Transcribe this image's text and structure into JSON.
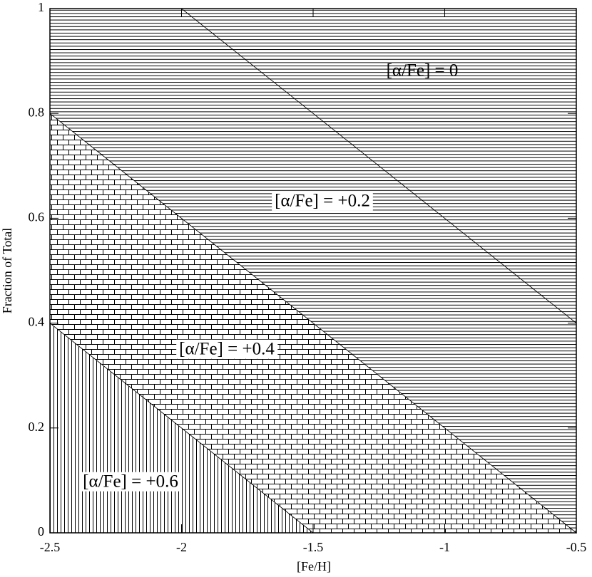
{
  "chart_data": {
    "type": "area",
    "stacked": true,
    "x_label": "[Fe/H]",
    "y_label": "Fraction of Total",
    "x": [
      -2.5,
      -2.0,
      -1.5,
      -1.0,
      -0.5
    ],
    "series": [
      {
        "name": "[α/Fe] = +0.6",
        "color": "#000000",
        "pattern": "vertical",
        "values": [
          0.4,
          0.2,
          0,
          0,
          0
        ]
      },
      {
        "name": "[α/Fe] = +0.4",
        "color": "#000000",
        "pattern": "brick",
        "values": [
          0.4,
          0.4,
          0.4,
          0.2,
          0
        ]
      },
      {
        "name": "[α/Fe] = +0.2",
        "color": "#000000",
        "pattern": "horizontal",
        "values": [
          0.2,
          0.4,
          0.4,
          0.4,
          0.4
        ]
      },
      {
        "name": "[α/Fe] = 0",
        "color": "#000000",
        "pattern": "horizontal",
        "values": [
          0,
          0,
          0.2,
          0.4,
          0.6
        ]
      }
    ],
    "xlim": [
      -2.5,
      -0.5
    ],
    "ylim": [
      0,
      1
    ],
    "xticks": [
      -2.5,
      -2,
      -1.5,
      -1,
      -0.5
    ],
    "yticks": [
      0,
      0.2,
      0.4,
      0.6,
      0.8,
      1
    ],
    "grid": false
  }
}
